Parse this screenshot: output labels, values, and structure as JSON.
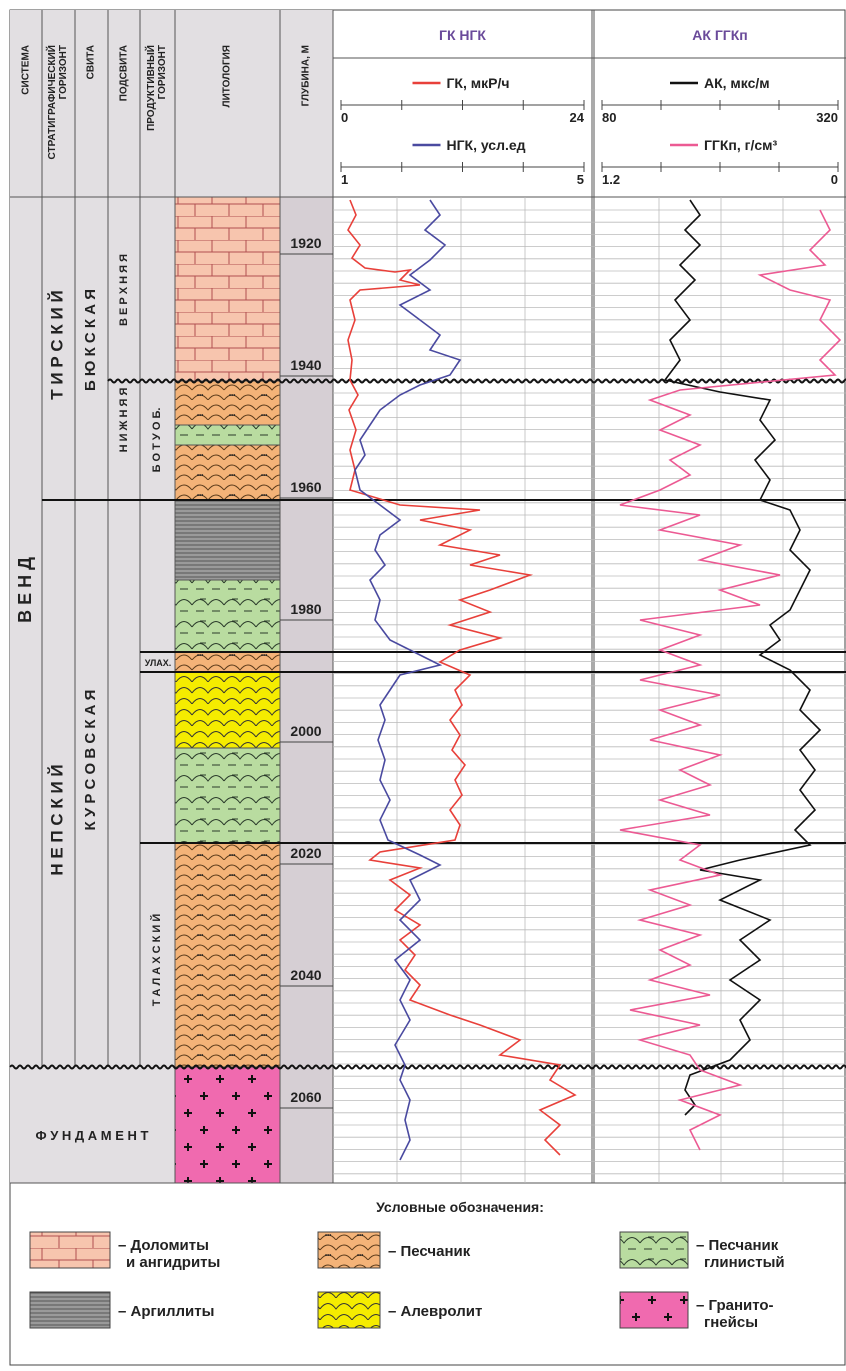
{
  "header": {
    "columns": [
      [
        "СИСТЕМА"
      ],
      [
        "СТРАТИГРАФИЧЕСКИЙ",
        "ГОРИЗОНТ"
      ],
      [
        "СВИТА"
      ],
      [
        "ПОДСВИТА"
      ],
      [
        "ПРОДУКТИВНЫЙ",
        "ГОРИЗОНТ"
      ],
      [
        "ЛИТОЛОГИЯ"
      ],
      [
        "ГЛУБИНА, М"
      ]
    ]
  },
  "tracks": [
    {
      "title": "ГК НГК",
      "curves": [
        {
          "name": "ГК, мкР/ч",
          "color": "#e8403a",
          "scale": [
            "0",
            "24"
          ]
        },
        {
          "name": "НГК, усл.ед",
          "color": "#4a4aa0",
          "scale": [
            "1",
            "5"
          ]
        }
      ]
    },
    {
      "title": "АК ГГКп",
      "curves": [
        {
          "name": "АК, мкс/м",
          "color": "#111111",
          "scale": [
            "80",
            "320"
          ]
        },
        {
          "name": "ГГКп, г/см³",
          "color": "#ec5a93",
          "scale": [
            "1.2",
            "0"
          ]
        }
      ]
    }
  ],
  "depth": {
    "ticks": [
      1920,
      1940,
      1960,
      1980,
      2000,
      2020,
      2040,
      2060
    ]
  },
  "units": {
    "system": "В Е Н Д",
    "horizons": [
      "Т И Р С К И Й",
      "Н Е П С К И Й"
    ],
    "svitas": [
      "Б Ю К С К А Я",
      "К У Р С О В С К А Я"
    ],
    "subsvitas": [
      "В Е Р Х Н Я Я",
      "Н И Ж Н Я Я"
    ],
    "productive": [
      "Б О Т У О Б.",
      "УЛАХ.",
      "Т А Л А Х С К И Й"
    ],
    "basement": "Ф У Н Д А М Е Н Т"
  },
  "legend": {
    "title": "Условные обозначения:",
    "items": [
      [
        "– Доломиты",
        "и ангидриты"
      ],
      [
        "– Песчаник"
      ],
      [
        "– Песчаник",
        "глинистый"
      ],
      [
        "– Аргиллиты"
      ],
      [
        "– Алевролит"
      ],
      [
        "– Гранито-",
        "гнейсы"
      ]
    ]
  }
}
